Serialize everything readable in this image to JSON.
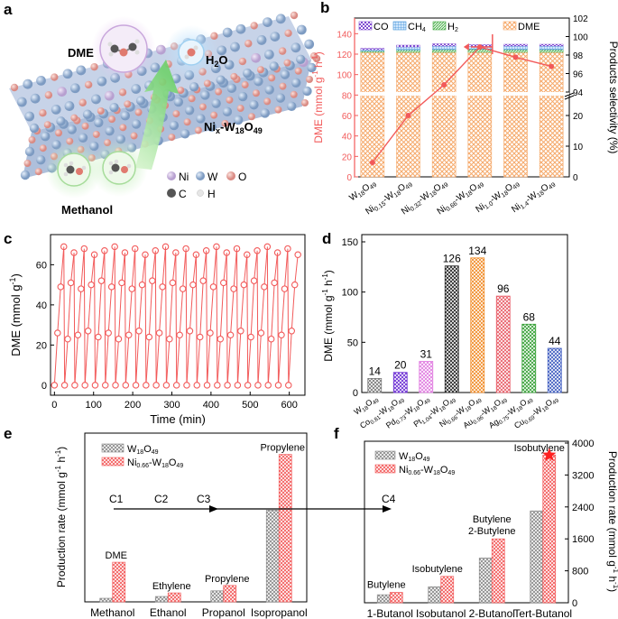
{
  "figure": {
    "panel_letters": [
      "a",
      "b",
      "c",
      "d",
      "e",
      "f"
    ]
  },
  "panel_a": {
    "labels": {
      "dme": "DME",
      "water": "H",
      "water_sub": "2",
      "water_end": "O",
      "methanol": "Methanol",
      "material_pre": "Ni",
      "material_x": "x",
      "material_mid": "-W",
      "material_18": "18",
      "material_o": "O",
      "material_49": "49"
    },
    "legend": [
      {
        "symbol": "Ni",
        "color": "#c9b6dc"
      },
      {
        "symbol": "W",
        "color": "#8aa9cf"
      },
      {
        "symbol": "O",
        "color": "#e39a94"
      },
      {
        "symbol": "C",
        "color": "#555555"
      },
      {
        "symbol": "H",
        "color": "#e6e6e6"
      }
    ]
  },
  "chart_data": [
    {
      "panel": "b",
      "type": "bar",
      "title": "",
      "ylabel": "DME (mmol g-1 h-1)",
      "ylabel_parts": [
        "DME (mmol g",
        "-1",
        " h",
        "-1",
        ")"
      ],
      "y2label": "Products selectivity (%)",
      "legend": [
        "CO",
        "CH4",
        "H2",
        "DME"
      ],
      "legend_parts": [
        [
          "CO"
        ],
        [
          "CH",
          "4"
        ],
        [
          "H",
          "2"
        ],
        [
          "DME"
        ]
      ],
      "categories": [
        "W18O49",
        "Ni0.15-W18O49",
        "Ni0.32-W18O49",
        "Ni0.66-W18O49",
        "Ni1.0-W18O49",
        "Ni1.4-W18O49"
      ],
      "category_parts": [
        [
          "W",
          "18",
          "O",
          "49"
        ],
        [
          "Ni",
          "0.15",
          "-W",
          "18",
          "O",
          "49"
        ],
        [
          "Ni",
          "0.32",
          "-W",
          "18",
          "O",
          "49"
        ],
        [
          "Ni",
          "0.66",
          "-W",
          "18",
          "O",
          "49"
        ],
        [
          "Ni",
          "1.0",
          "-W",
          "18",
          "O",
          "49"
        ],
        [
          "Ni",
          "1.4",
          "-W",
          "18",
          "O",
          "49"
        ]
      ],
      "dme_rate": [
        14,
        60,
        90,
        127,
        117,
        108
      ],
      "selectivity": {
        "DME": [
          99.1,
          98.4,
          98.1,
          98.3,
          98.2,
          98.2
        ],
        "H2": [
          0.3,
          0.5,
          0.6,
          0.7,
          0.6,
          0.6
        ],
        "CH4": [
          0.3,
          0.7,
          0.8,
          0.6,
          0.8,
          0.8
        ],
        "CO": [
          0.3,
          0.4,
          0.5,
          0.4,
          0.4,
          0.4
        ]
      },
      "y_ticks": [
        "0",
        "20",
        "40",
        "60",
        "80",
        "100",
        "120",
        "140"
      ],
      "y2_ticks_low": [
        "0",
        "10",
        "20"
      ],
      "y2_ticks_high": [
        "94",
        "96",
        "98",
        "100",
        "102"
      ],
      "ylim": [
        0,
        150
      ]
    },
    {
      "panel": "c",
      "type": "scatter",
      "xlabel": "Time (min)",
      "ylabel": "DME (mmol g-1)",
      "ylabel_parts": [
        "DME (mmol g",
        "-1",
        ")"
      ],
      "x_ticks": [
        "0",
        "100",
        "200",
        "300",
        "400",
        "500",
        "600"
      ],
      "y_ticks": [
        "0",
        "20",
        "40",
        "60"
      ],
      "xlim": [
        -10,
        640
      ],
      "ylim": [
        -5,
        75
      ],
      "cycles": 24,
      "cycle_period_min": 26,
      "points_per_cycle": [
        0,
        25,
        50,
        67
      ]
    },
    {
      "panel": "d",
      "type": "bar",
      "ylabel": "DME (mmol g-1 h-1)",
      "ylabel_parts": [
        "DME (mmol g",
        "-1",
        " h",
        "-1",
        ")"
      ],
      "categories": [
        "W18O49",
        "Co0.81-W18O49",
        "Pd0.73-W18O49",
        "Pt1.04-W18O49",
        "Ni0.66-W18O49",
        "Au0.96-W18O49",
        "Ag0.75-W18O49",
        "Cu0.69-W18O49"
      ],
      "category_parts": [
        [
          "W",
          "18",
          "O",
          "49"
        ],
        [
          "Co",
          "0.81",
          "-W",
          "18",
          "O",
          "49"
        ],
        [
          "Pd",
          "0.73",
          "-W",
          "18",
          "O",
          "49"
        ],
        [
          "Pt",
          "1.04",
          "-W",
          "18",
          "O",
          "49"
        ],
        [
          "Ni",
          "0.66",
          "-W",
          "18",
          "O",
          "49"
        ],
        [
          "Au",
          "0.96",
          "-W",
          "18",
          "O",
          "49"
        ],
        [
          "Ag",
          "0.75",
          "-W",
          "18",
          "O",
          "49"
        ],
        [
          "Cu",
          "0.69",
          "-W",
          "18",
          "O",
          "49"
        ]
      ],
      "values": [
        14,
        20,
        31,
        126,
        134,
        96,
        68,
        44
      ],
      "value_labels": [
        "14",
        "20",
        "31",
        "126",
        "134",
        "96",
        "68",
        "44"
      ],
      "colors": [
        "#777777",
        "#6a2bd3",
        "#e07be0",
        "#222222",
        "#f08a25",
        "#e85b66",
        "#35a035",
        "#3d5bbf"
      ],
      "y_ticks": [
        "0",
        "50",
        "100",
        "150"
      ],
      "ylim": [
        0,
        150
      ]
    },
    {
      "panel": "e",
      "type": "bar",
      "ylabel": "Production rate (mmol g-1 h-1)",
      "ylabel_parts": [
        "Production rate (mmol g",
        "-1",
        " h",
        "-1",
        ")"
      ],
      "categories": [
        "Methanol",
        "Ethanol",
        "Propanol",
        "Isopropanol"
      ],
      "series": [
        {
          "name": "W18O49",
          "name_parts": [
            "W",
            "18",
            "O",
            "49"
          ],
          "values": [
            12,
            18,
            37,
            308
          ]
        },
        {
          "name": "Ni0.66-W18O49",
          "name_parts": [
            "Ni",
            "0.66",
            "-W",
            "18",
            "O",
            "49"
          ],
          "values": [
            133,
            30,
            55,
            495
          ]
        }
      ],
      "product_labels": [
        "DME",
        "Ethylene",
        "Propylene",
        "Propylene"
      ],
      "carbon_labels": [
        "C1",
        "C2",
        "C3",
        "C4"
      ],
      "ylim": [
        0,
        500
      ]
    },
    {
      "panel": "f",
      "type": "bar",
      "ylabel": "Production rate (mmol g-1 h-1)",
      "ylabel_parts": [
        "Production rate (mmol g",
        "-1",
        " h",
        "-1",
        ")"
      ],
      "categories": [
        "1-Butanol",
        "Isobutanol",
        "2-Butanol",
        "Tert-Butanol"
      ],
      "series": [
        {
          "name": "W18O49",
          "name_parts": [
            "W",
            "18",
            "O",
            "49"
          ],
          "values": [
            200,
            400,
            1120,
            2300
          ]
        },
        {
          "name": "Ni0.66-W18O49",
          "name_parts": [
            "Ni",
            "0.66",
            "-W",
            "18",
            "O",
            "49"
          ],
          "values": [
            260,
            660,
            1600,
            3700
          ]
        }
      ],
      "product_labels": [
        "Butylene",
        "Isobutylene",
        "Butylene",
        "Isobutylene"
      ],
      "product_labels_extra": [
        "",
        "",
        "2-Butylene",
        ""
      ],
      "y_ticks": [
        "0",
        "800",
        "1600",
        "2400",
        "3200",
        "4000"
      ],
      "ylim": [
        0,
        4000
      ]
    }
  ],
  "colors": {
    "red": "#f25a5a",
    "gray_bar": "#888888",
    "dme_bar": "#f6b27a",
    "ch4": "#3d8fd8",
    "h2": "#5cc25c",
    "co": "#7f4ad1"
  }
}
